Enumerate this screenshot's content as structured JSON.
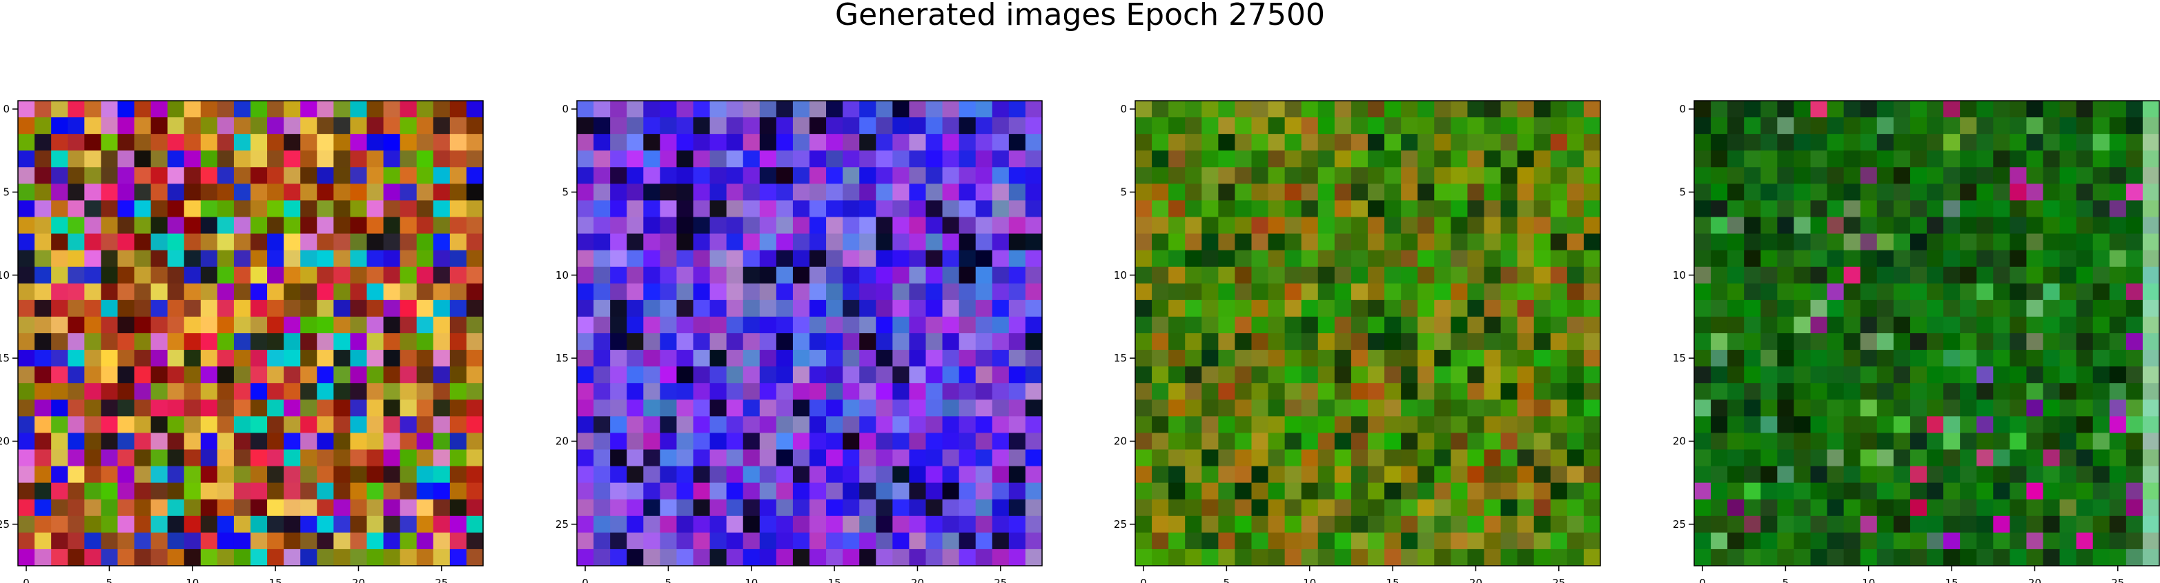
{
  "title": "Generated images Epoch 27500",
  "chart_data": [
    {
      "type": "heatmap",
      "rows": 28,
      "cols": 28,
      "dominant_color": "mixed",
      "xticks": [
        "0",
        "5",
        "10",
        "15",
        "20",
        "25"
      ],
      "yticks": [
        "0",
        "5",
        "10",
        "15",
        "20",
        "25"
      ],
      "xlim": [
        -0.5,
        27.5
      ],
      "ylim": [
        27.5,
        -0.5
      ]
    },
    {
      "type": "heatmap",
      "rows": 28,
      "cols": 28,
      "dominant_color": "blue-violet",
      "xticks": [
        "0",
        "5",
        "10",
        "15",
        "20",
        "25"
      ],
      "yticks": [
        "0",
        "5",
        "10",
        "15",
        "20",
        "25"
      ],
      "xlim": [
        -0.5,
        27.5
      ],
      "ylim": [
        27.5,
        -0.5
      ]
    },
    {
      "type": "heatmap",
      "rows": 28,
      "cols": 28,
      "dominant_color": "green-olive",
      "xticks": [
        "0",
        "5",
        "10",
        "15",
        "20",
        "25"
      ],
      "yticks": [
        "0",
        "5",
        "10",
        "15",
        "20",
        "25"
      ],
      "xlim": [
        -0.5,
        27.5
      ],
      "ylim": [
        27.5,
        -0.5
      ]
    },
    {
      "type": "heatmap",
      "rows": 28,
      "cols": 28,
      "dominant_color": "dark-green",
      "xticks": [
        "0",
        "5",
        "10",
        "15",
        "20",
        "25"
      ],
      "yticks": [
        "0",
        "5",
        "10",
        "15",
        "20",
        "25"
      ],
      "xlim": [
        -0.5,
        27.5
      ],
      "ylim": [
        27.5,
        -0.5
      ]
    }
  ]
}
